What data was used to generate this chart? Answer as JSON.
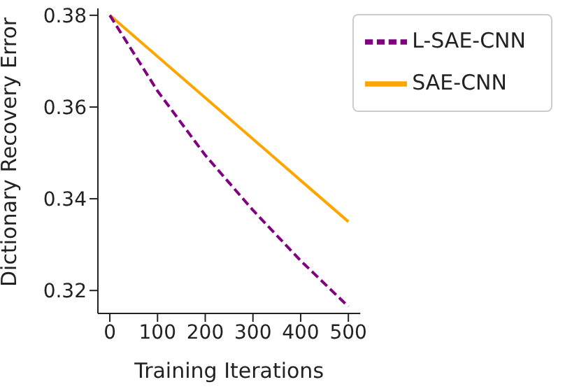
{
  "chart_data": {
    "type": "line",
    "xlabel": "Training Iterations",
    "ylabel": "Dictionary Recovery Error",
    "x": [
      0,
      100,
      200,
      300,
      400,
      500
    ],
    "series": [
      {
        "name": "SAE-CNN",
        "color": "#ffa500",
        "line_style": "solid",
        "values": [
          0.38,
          0.371,
          0.362,
          0.353,
          0.344,
          0.335
        ]
      },
      {
        "name": "L-SAE-CNN",
        "color": "#800080",
        "line_style": "dashed",
        "values": [
          0.38,
          0.3635,
          0.3495,
          0.3375,
          0.3265,
          0.3165
        ]
      }
    ],
    "xlim": [
      -25,
      525
    ],
    "xticks": [
      0,
      100,
      200,
      300,
      400,
      500
    ],
    "ylim": [
      0.315,
      0.3815
    ],
    "yticks": [
      0.32,
      0.34,
      0.36,
      0.38
    ],
    "grid": false,
    "legend": "top right",
    "marker": "none"
  }
}
